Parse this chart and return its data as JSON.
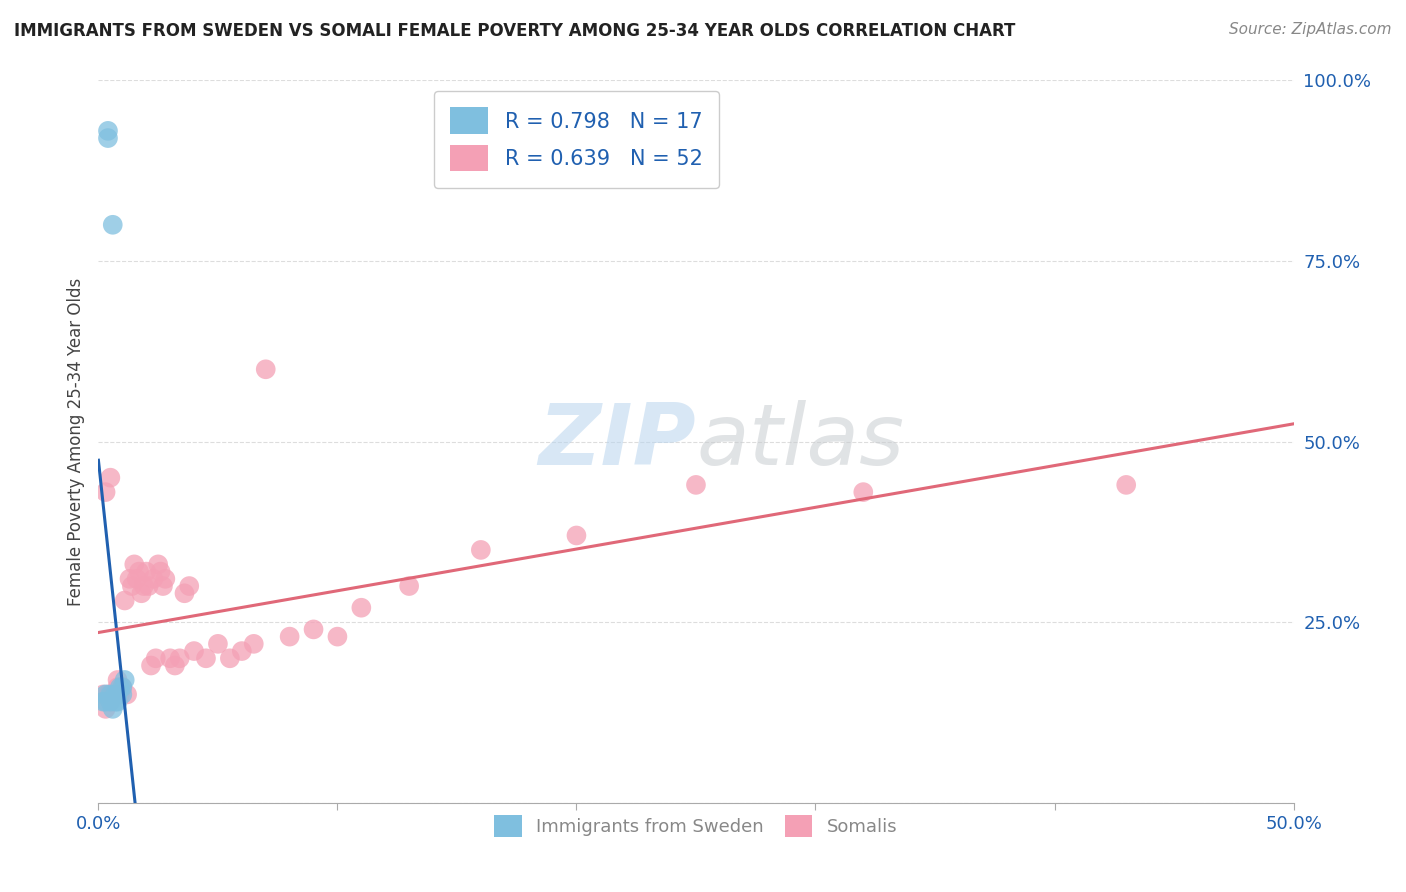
{
  "title": "IMMIGRANTS FROM SWEDEN VS SOMALI FEMALE POVERTY AMONG 25-34 YEAR OLDS CORRELATION CHART",
  "source": "Source: ZipAtlas.com",
  "ylabel": "Female Poverty Among 25-34 Year Olds",
  "xlim": [
    0.0,
    0.5
  ],
  "ylim": [
    0.0,
    1.0
  ],
  "xticks": [
    0.0,
    0.1,
    0.2,
    0.3,
    0.4,
    0.5
  ],
  "xticklabels_show": [
    "0.0%",
    "",
    "",
    "",
    "",
    "50.0%"
  ],
  "yticks": [
    0.0,
    0.25,
    0.5,
    0.75,
    1.0
  ],
  "yticklabels": [
    "",
    "25.0%",
    "50.0%",
    "75.0%",
    "100.0%"
  ],
  "blue_color": "#7fbfdf",
  "pink_color": "#f4a0b5",
  "blue_line_color": "#2060b0",
  "pink_line_color": "#e06878",
  "R_blue": 0.798,
  "N_blue": 17,
  "R_pink": 0.639,
  "N_pink": 52,
  "legend_labels": [
    "Immigrants from Sweden",
    "Somalis"
  ],
  "watermark_zip": "ZIP",
  "watermark_atlas": "atlas",
  "blue_scatter_x": [
    0.002,
    0.003,
    0.003,
    0.004,
    0.004,
    0.005,
    0.005,
    0.006,
    0.006,
    0.007,
    0.007,
    0.008,
    0.008,
    0.009,
    0.01,
    0.01,
    0.011
  ],
  "blue_scatter_y": [
    0.14,
    0.14,
    0.15,
    0.92,
    0.93,
    0.14,
    0.15,
    0.13,
    0.8,
    0.14,
    0.15,
    0.15,
    0.14,
    0.16,
    0.15,
    0.16,
    0.17
  ],
  "pink_scatter_x": [
    0.002,
    0.003,
    0.003,
    0.004,
    0.005,
    0.005,
    0.006,
    0.007,
    0.008,
    0.008,
    0.009,
    0.01,
    0.011,
    0.012,
    0.013,
    0.014,
    0.015,
    0.016,
    0.017,
    0.018,
    0.019,
    0.02,
    0.021,
    0.022,
    0.023,
    0.024,
    0.025,
    0.026,
    0.027,
    0.028,
    0.03,
    0.032,
    0.034,
    0.036,
    0.038,
    0.04,
    0.045,
    0.05,
    0.055,
    0.06,
    0.065,
    0.07,
    0.08,
    0.09,
    0.1,
    0.11,
    0.13,
    0.16,
    0.2,
    0.25,
    0.32,
    0.43
  ],
  "pink_scatter_y": [
    0.15,
    0.13,
    0.43,
    0.15,
    0.14,
    0.45,
    0.15,
    0.15,
    0.16,
    0.17,
    0.15,
    0.16,
    0.28,
    0.15,
    0.31,
    0.3,
    0.33,
    0.31,
    0.32,
    0.29,
    0.3,
    0.32,
    0.3,
    0.19,
    0.31,
    0.2,
    0.33,
    0.32,
    0.3,
    0.31,
    0.2,
    0.19,
    0.2,
    0.29,
    0.3,
    0.21,
    0.2,
    0.22,
    0.2,
    0.21,
    0.22,
    0.6,
    0.23,
    0.24,
    0.23,
    0.27,
    0.3,
    0.35,
    0.37,
    0.44,
    0.43,
    0.44
  ],
  "title_color": "#222222",
  "source_color": "#888888",
  "axis_label_color": "#444444",
  "tick_color": "#888888",
  "tick_label_color": "#2060b0",
  "grid_color": "#dddddd",
  "legend_text_color": "#2060b0",
  "background_color": "#ffffff"
}
